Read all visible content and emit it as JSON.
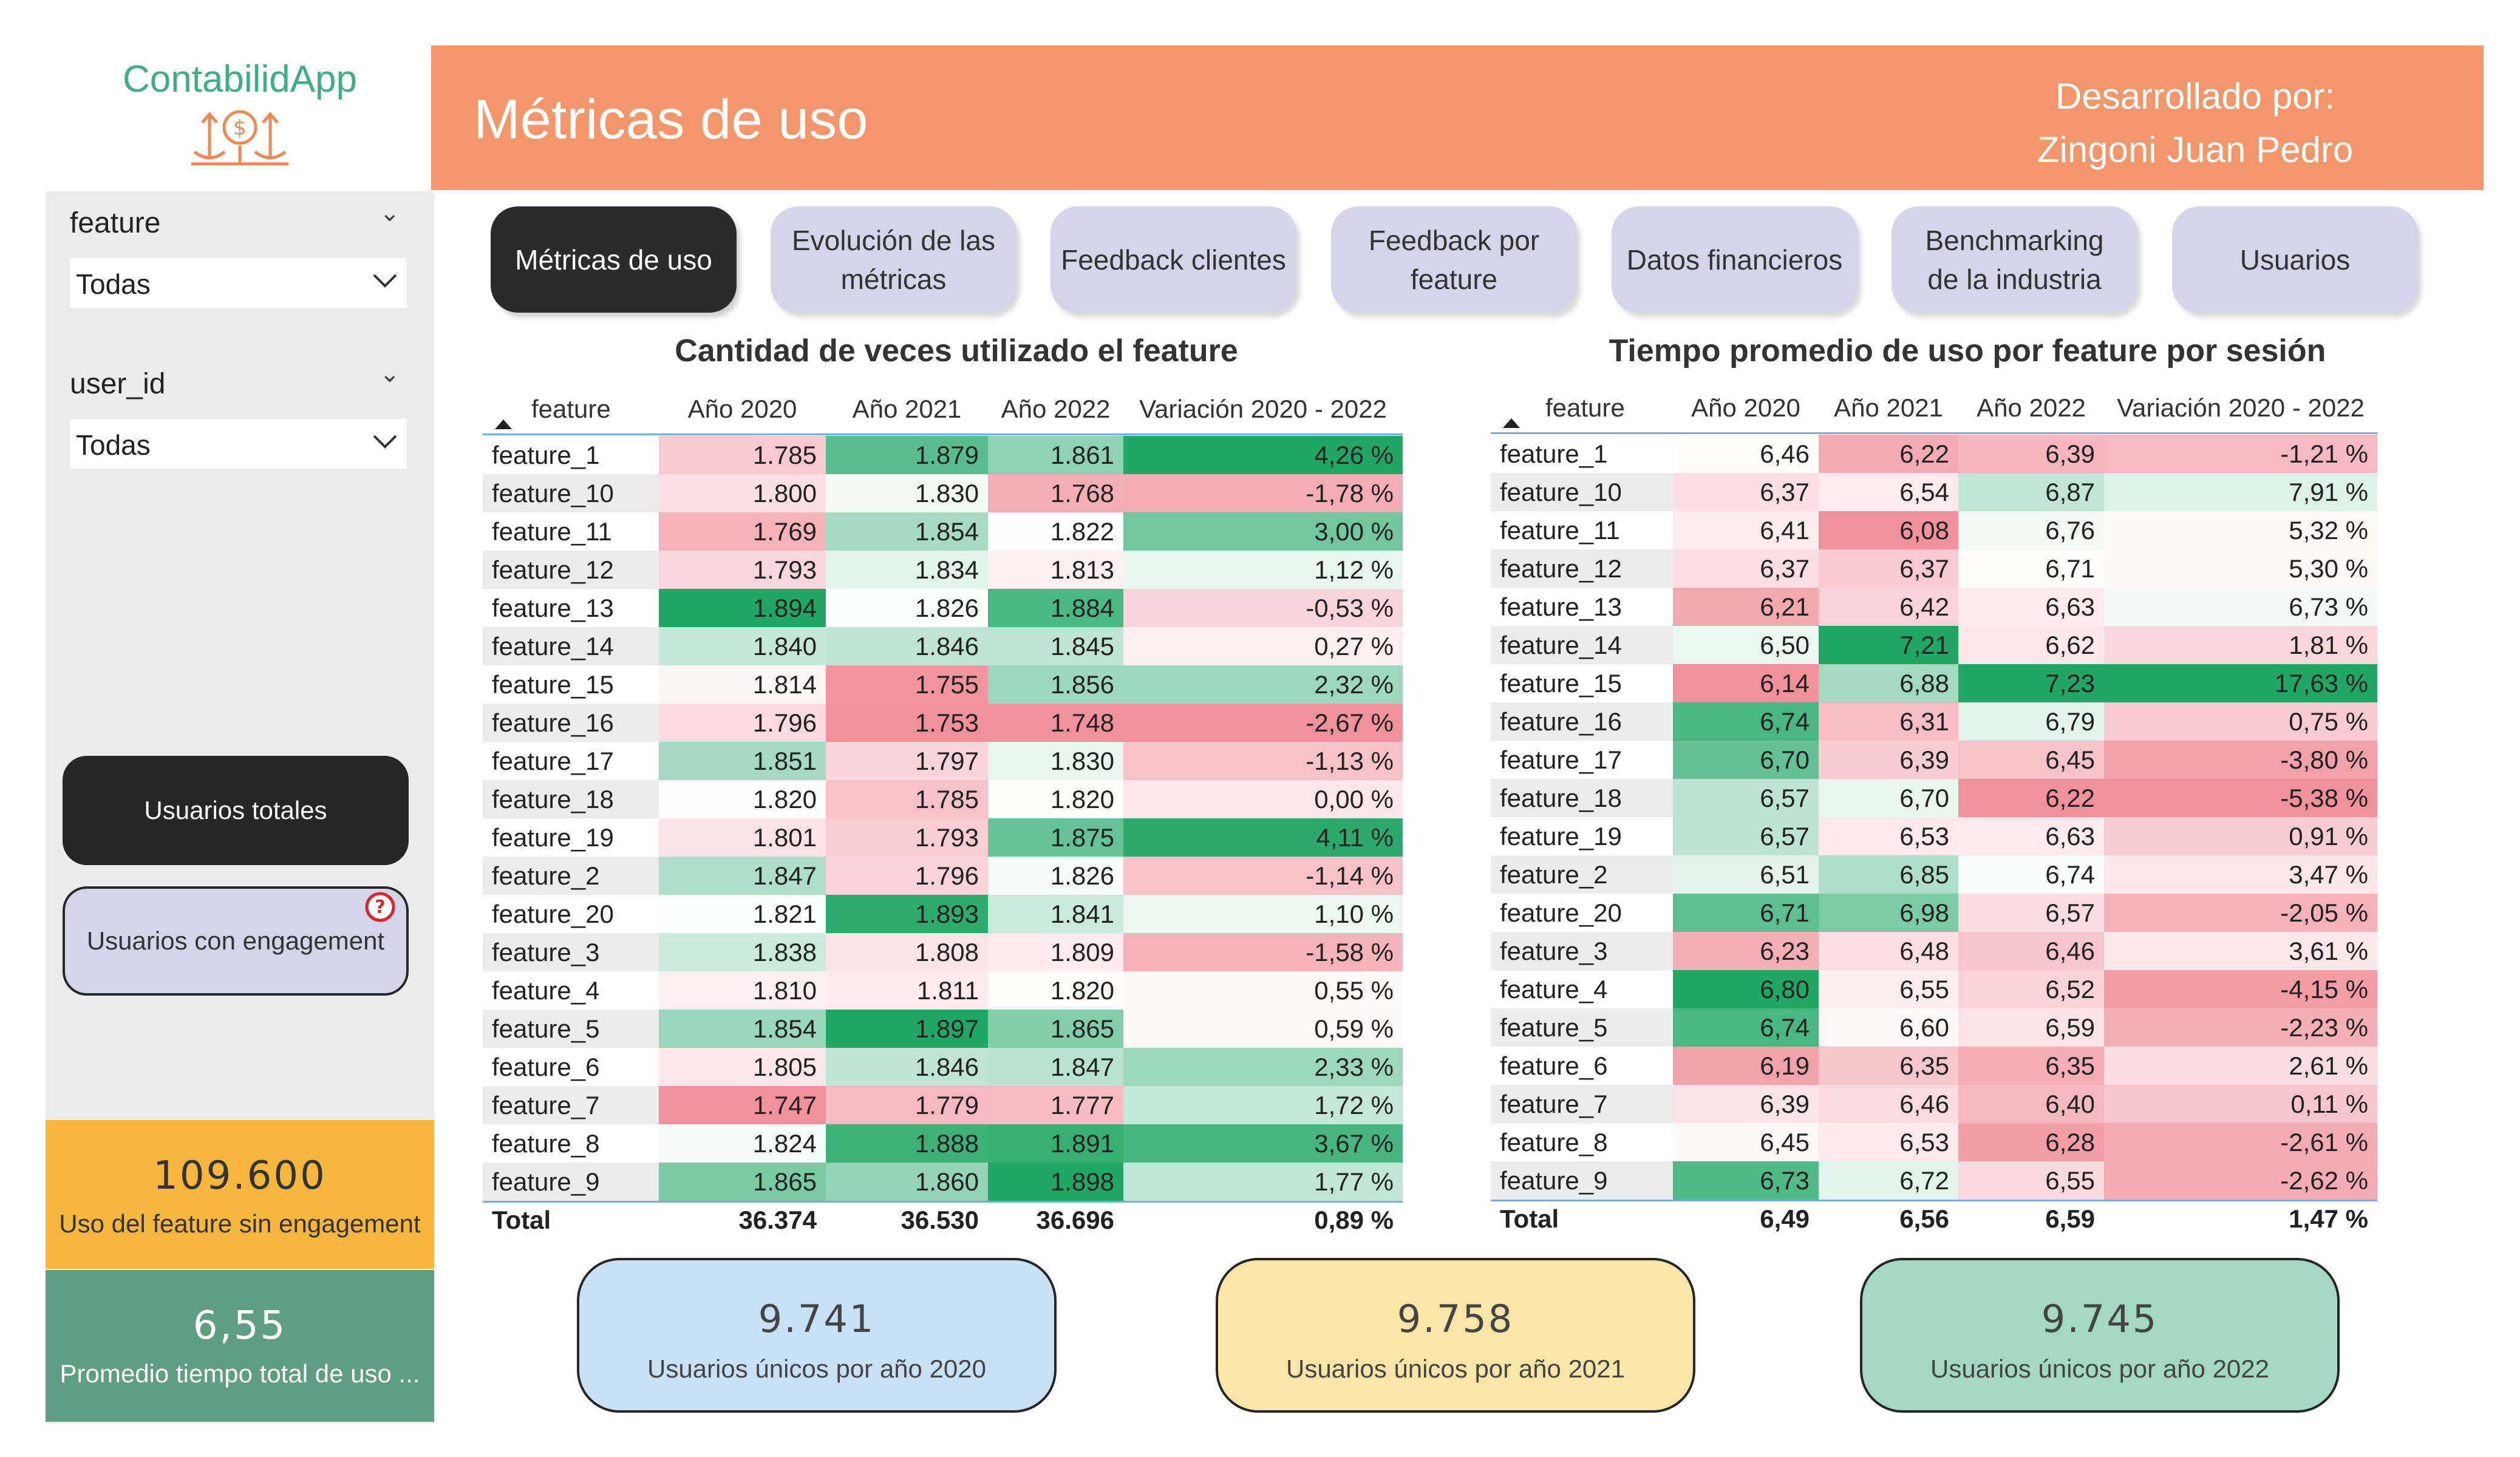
{
  "app": {
    "logo_text": "ContabilidApp"
  },
  "header": {
    "title": "Métricas de uso",
    "dev_line1": "Desarrollado por:",
    "dev_line2": "Zingoni Juan Pedro"
  },
  "nav": [
    {
      "label": "Métricas de uso",
      "active": true
    },
    {
      "label": "Evolución de las métricas",
      "active": false
    },
    {
      "label": "Feedback clientes",
      "active": false
    },
    {
      "label": "Feedback por feature",
      "active": false
    },
    {
      "label": "Datos financieros",
      "active": false
    },
    {
      "label": "Benchmarking de la industria",
      "active": false
    },
    {
      "label": "Usuarios",
      "active": false
    }
  ],
  "slicers": [
    {
      "label": "feature",
      "value": "Todas"
    },
    {
      "label": "user_id",
      "value": "Todas"
    }
  ],
  "sidebar_buttons": {
    "total": "Usuarios totales",
    "engagement": "Usuarios con engagement",
    "help_icon": "question-circle-icon"
  },
  "kpis": {
    "sin_engagement": {
      "value": "109.600",
      "label": "Uso del feature sin engagement"
    },
    "promedio": {
      "value": "6,55",
      "label": "Promedio tiempo total de uso ..."
    }
  },
  "colors": {
    "header": "#f4956a",
    "logo": "#3fae84",
    "kpi_yellow": "#f6b73c",
    "kpi_green": "#5f9e80",
    "card_2020": "#c9e1f7",
    "card_2021": "#fae5a8",
    "card_2022": "#a3d9c4"
  },
  "table_count": {
    "title": "Cantidad de veces utilizado el feature",
    "columns": [
      "feature",
      "Año 2020",
      "Año 2021",
      "Año 2022",
      "Variación 2020 - 2022"
    ],
    "rows": [
      [
        "feature_1",
        "1.785",
        "1.879",
        "1.861",
        "4,26 %"
      ],
      [
        "feature_10",
        "1.800",
        "1.830",
        "1.768",
        "-1,78 %"
      ],
      [
        "feature_11",
        "1.769",
        "1.854",
        "1.822",
        "3,00 %"
      ],
      [
        "feature_12",
        "1.793",
        "1.834",
        "1.813",
        "1,12 %"
      ],
      [
        "feature_13",
        "1.894",
        "1.826",
        "1.884",
        "-0,53 %"
      ],
      [
        "feature_14",
        "1.840",
        "1.846",
        "1.845",
        "0,27 %"
      ],
      [
        "feature_15",
        "1.814",
        "1.755",
        "1.856",
        "2,32 %"
      ],
      [
        "feature_16",
        "1.796",
        "1.753",
        "1.748",
        "-2,67 %"
      ],
      [
        "feature_17",
        "1.851",
        "1.797",
        "1.830",
        "-1,13 %"
      ],
      [
        "feature_18",
        "1.820",
        "1.785",
        "1.820",
        "0,00 %"
      ],
      [
        "feature_19",
        "1.801",
        "1.793",
        "1.875",
        "4,11 %"
      ],
      [
        "feature_2",
        "1.847",
        "1.796",
        "1.826",
        "-1,14 %"
      ],
      [
        "feature_20",
        "1.821",
        "1.893",
        "1.841",
        "1,10 %"
      ],
      [
        "feature_3",
        "1.838",
        "1.808",
        "1.809",
        "-1,58 %"
      ],
      [
        "feature_4",
        "1.810",
        "1.811",
        "1.820",
        "0,55 %"
      ],
      [
        "feature_5",
        "1.854",
        "1.897",
        "1.865",
        "0,59 %"
      ],
      [
        "feature_6",
        "1.805",
        "1.846",
        "1.847",
        "2,33 %"
      ],
      [
        "feature_7",
        "1.747",
        "1.779",
        "1.777",
        "1,72 %"
      ],
      [
        "feature_8",
        "1.824",
        "1.888",
        "1.891",
        "3,67 %"
      ],
      [
        "feature_9",
        "1.865",
        "1.860",
        "1.898",
        "1,77 %"
      ]
    ],
    "total": [
      "Total",
      "36.374",
      "36.530",
      "36.696",
      "0,89 %"
    ]
  },
  "table_time": {
    "title": "Tiempo promedio de uso por feature por sesión",
    "columns": [
      "feature",
      "Año 2020",
      "Año 2021",
      "Año 2022",
      "Variación 2020 - 2022"
    ],
    "rows": [
      [
        "feature_1",
        "6,46",
        "6,22",
        "6,39",
        "-1,21 %"
      ],
      [
        "feature_10",
        "6,37",
        "6,54",
        "6,87",
        "7,91 %"
      ],
      [
        "feature_11",
        "6,41",
        "6,08",
        "6,76",
        "5,32 %"
      ],
      [
        "feature_12",
        "6,37",
        "6,37",
        "6,71",
        "5,30 %"
      ],
      [
        "feature_13",
        "6,21",
        "6,42",
        "6,63",
        "6,73 %"
      ],
      [
        "feature_14",
        "6,50",
        "7,21",
        "6,62",
        "1,81 %"
      ],
      [
        "feature_15",
        "6,14",
        "6,88",
        "7,23",
        "17,63 %"
      ],
      [
        "feature_16",
        "6,74",
        "6,31",
        "6,79",
        "0,75 %"
      ],
      [
        "feature_17",
        "6,70",
        "6,39",
        "6,45",
        "-3,80 %"
      ],
      [
        "feature_18",
        "6,57",
        "6,70",
        "6,22",
        "-5,38 %"
      ],
      [
        "feature_19",
        "6,57",
        "6,53",
        "6,63",
        "0,91 %"
      ],
      [
        "feature_2",
        "6,51",
        "6,85",
        "6,74",
        "3,47 %"
      ],
      [
        "feature_20",
        "6,71",
        "6,98",
        "6,57",
        "-2,05 %"
      ],
      [
        "feature_3",
        "6,23",
        "6,48",
        "6,46",
        "3,61 %"
      ],
      [
        "feature_4",
        "6,80",
        "6,55",
        "6,52",
        "-4,15 %"
      ],
      [
        "feature_5",
        "6,74",
        "6,60",
        "6,59",
        "-2,23 %"
      ],
      [
        "feature_6",
        "6,19",
        "6,35",
        "6,35",
        "2,61 %"
      ],
      [
        "feature_7",
        "6,39",
        "6,46",
        "6,40",
        "0,11 %"
      ],
      [
        "feature_8",
        "6,45",
        "6,53",
        "6,28",
        "-2,61 %"
      ],
      [
        "feature_9",
        "6,73",
        "6,72",
        "6,55",
        "-2,62 %"
      ]
    ],
    "total": [
      "Total",
      "6,49",
      "6,56",
      "6,59",
      "1,47 %"
    ]
  },
  "unique_users": [
    {
      "value": "9.741",
      "label": "Usuarios únicos por año 2020"
    },
    {
      "value": "9.758",
      "label": "Usuarios únicos por año 2021"
    },
    {
      "value": "9.745",
      "label": "Usuarios únicos por año 2022"
    }
  ]
}
